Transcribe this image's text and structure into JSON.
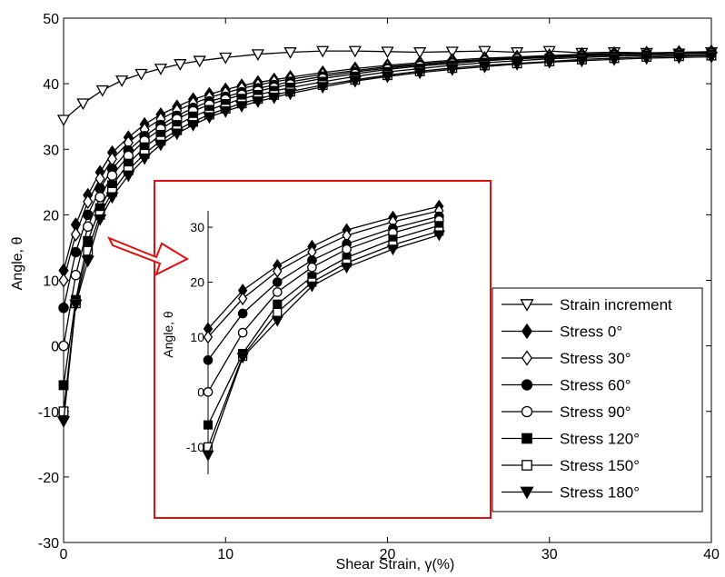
{
  "chart_data": [
    {
      "type": "line",
      "xlabel": "Shear Strain, γ(%)",
      "ylabel": "Angle, θ",
      "xlim": [
        0,
        40
      ],
      "ylim": [
        -30,
        50
      ],
      "xticks": [
        "0",
        "10",
        "20",
        "30",
        "40"
      ],
      "yticks": [
        "-30",
        "-20",
        "-10",
        "0",
        "10",
        "20",
        "30",
        "40",
        "50"
      ],
      "legend_position": "lower-right",
      "series": [
        {
          "name": "Strain increment",
          "marker": "triangle-down-open",
          "x": [
            0,
            1.2,
            2.4,
            3.6,
            4.8,
            6,
            7.2,
            8.4,
            10,
            12,
            14,
            16,
            18,
            20,
            22,
            24,
            26,
            28,
            30,
            32,
            34,
            36,
            38,
            40
          ],
          "y": [
            34.5,
            37,
            39,
            40.5,
            41.5,
            42.3,
            43,
            43.5,
            44,
            44.5,
            44.8,
            45,
            45,
            44.9,
            44.8,
            44.9,
            45,
            44.8,
            45,
            44.7,
            44.8,
            44.7,
            44.6,
            44.8
          ]
        },
        {
          "name": "Stress 0°",
          "marker": "diamond-filled",
          "x": [
            0,
            0.75,
            1.5,
            2.25,
            3,
            4,
            5,
            6,
            7,
            8,
            9,
            10,
            11,
            12,
            13,
            14,
            16,
            18,
            20,
            22,
            24,
            26,
            28,
            30,
            32,
            34,
            36,
            38,
            40
          ],
          "y": [
            11.5,
            18.5,
            23,
            26.5,
            29.5,
            31.8,
            33.8,
            35.3,
            36.5,
            37.6,
            38.4,
            39.1,
            39.7,
            40.2,
            40.6,
            41,
            41.7,
            42.3,
            42.8,
            43.2,
            43.6,
            43.9,
            44.1,
            44.3,
            44.5,
            44.6,
            44.7,
            44.8,
            44.9
          ]
        },
        {
          "name": "Stress 30°",
          "marker": "diamond-open",
          "x": [
            0,
            0.75,
            1.5,
            2.25,
            3,
            4,
            5,
            6,
            7,
            8,
            9,
            10,
            11,
            12,
            13,
            14,
            16,
            18,
            20,
            22,
            24,
            26,
            28,
            30,
            32,
            34,
            36,
            38,
            40
          ],
          "y": [
            10,
            17,
            22,
            25.5,
            28.5,
            31,
            33,
            34.6,
            35.9,
            37,
            37.9,
            38.6,
            39.3,
            39.8,
            40.3,
            40.7,
            41.4,
            42,
            42.6,
            43,
            43.4,
            43.7,
            44,
            44.2,
            44.4,
            44.5,
            44.6,
            44.7,
            44.8
          ]
        },
        {
          "name": "Stress 60°",
          "marker": "circle-filled",
          "x": [
            0,
            0.75,
            1.5,
            2.25,
            3,
            4,
            5,
            6,
            7,
            8,
            9,
            10,
            11,
            12,
            13,
            14,
            16,
            18,
            20,
            22,
            24,
            26,
            28,
            30,
            32,
            34,
            36,
            38,
            40
          ],
          "y": [
            5.8,
            14.3,
            20,
            24,
            27,
            29.8,
            32,
            33.7,
            35.1,
            36.3,
            37.3,
            38,
            38.7,
            39.3,
            39.8,
            40.3,
            41.1,
            41.8,
            42.4,
            42.9,
            43.3,
            43.6,
            43.9,
            44.1,
            44.3,
            44.5,
            44.6,
            44.7,
            44.8
          ]
        },
        {
          "name": "Stress 90°",
          "marker": "circle-open",
          "x": [
            0,
            0.75,
            1.5,
            2.25,
            3,
            4,
            5,
            6,
            7,
            8,
            9,
            10,
            11,
            12,
            13,
            14,
            16,
            18,
            20,
            22,
            24,
            26,
            28,
            30,
            32,
            34,
            36,
            38,
            40
          ],
          "y": [
            0,
            10.8,
            18.2,
            22.7,
            26,
            29,
            31.3,
            33.1,
            34.6,
            35.8,
            36.8,
            37.6,
            38.3,
            38.9,
            39.4,
            39.9,
            40.8,
            41.5,
            42.2,
            42.7,
            43.1,
            43.5,
            43.8,
            44,
            44.2,
            44.4,
            44.5,
            44.6,
            44.7
          ]
        },
        {
          "name": "Stress 120°",
          "marker": "square-filled",
          "x": [
            0,
            0.75,
            1.5,
            2.25,
            3,
            4,
            5,
            6,
            7,
            8,
            9,
            10,
            11,
            12,
            13,
            14,
            16,
            18,
            20,
            22,
            24,
            26,
            28,
            30,
            32,
            34,
            36,
            38,
            40
          ],
          "y": [
            -6,
            7,
            16,
            21,
            24.5,
            27.8,
            30.3,
            32.2,
            33.7,
            35,
            36,
            36.9,
            37.7,
            38.3,
            38.9,
            39.4,
            40.3,
            41.1,
            41.8,
            42.3,
            42.8,
            43.2,
            43.5,
            43.8,
            44,
            44.2,
            44.3,
            44.4,
            44.5
          ]
        },
        {
          "name": "Stress 150°",
          "marker": "square-open",
          "x": [
            0,
            0.75,
            1.5,
            2.25,
            3,
            4,
            5,
            6,
            7,
            8,
            9,
            10,
            11,
            12,
            13,
            14,
            16,
            18,
            20,
            22,
            24,
            26,
            28,
            30,
            32,
            34,
            36,
            38,
            40
          ],
          "y": [
            -10,
            6.5,
            14.5,
            20,
            23.5,
            26.8,
            29.3,
            31.3,
            32.9,
            34.2,
            35.3,
            36.2,
            37,
            37.7,
            38.3,
            38.8,
            39.8,
            40.6,
            41.3,
            41.9,
            42.4,
            42.8,
            43.1,
            43.4,
            43.7,
            43.9,
            44.1,
            44.2,
            44.3
          ]
        },
        {
          "name": "Stress 180°",
          "marker": "triangle-down-filled",
          "x": [
            0,
            0.75,
            1.5,
            2.25,
            3,
            4,
            5,
            6,
            7,
            8,
            9,
            10,
            11,
            12,
            13,
            14,
            16,
            18,
            20,
            22,
            24,
            26,
            28,
            30,
            32,
            34,
            36,
            38,
            40
          ],
          "y": [
            -11.5,
            6.3,
            13,
            19.3,
            22.7,
            26,
            28.6,
            30.7,
            32.4,
            33.7,
            34.9,
            35.8,
            36.6,
            37.3,
            37.9,
            38.5,
            39.5,
            40.4,
            41.1,
            41.7,
            42.2,
            42.6,
            43,
            43.3,
            43.5,
            43.7,
            43.9,
            44,
            44.1
          ]
        }
      ]
    },
    {
      "type": "line",
      "role": "inset",
      "ylabel": "Angle, θ",
      "yticks": [
        "-10",
        "0",
        "10",
        "20",
        "30"
      ],
      "ylim": [
        -15,
        33
      ],
      "xlim": [
        0,
        5.8
      ],
      "series_x": [
        0,
        0.75,
        1.5,
        2.25,
        3,
        4,
        5
      ],
      "series": [
        {
          "name": "Stress 0°",
          "y": [
            11.5,
            18.5,
            23,
            26.5,
            29.5,
            31.8,
            33.8
          ]
        },
        {
          "name": "Stress 30°",
          "y": [
            10,
            17,
            22,
            25.5,
            28.5,
            31,
            33
          ]
        },
        {
          "name": "Stress 60°",
          "y": [
            5.8,
            14.3,
            20,
            24,
            27,
            29.8,
            32
          ]
        },
        {
          "name": "Stress 90°",
          "y": [
            0,
            10.8,
            18.2,
            22.7,
            26,
            29,
            31.3
          ]
        },
        {
          "name": "Stress 120°",
          "y": [
            -6,
            7,
            16,
            21,
            24.5,
            27.8,
            30.3
          ]
        },
        {
          "name": "Stress 150°",
          "y": [
            -10,
            6.5,
            14.5,
            20,
            23.5,
            26.8,
            29.3
          ]
        },
        {
          "name": "Stress 180°",
          "y": [
            -11.5,
            6.3,
            13,
            19.3,
            22.7,
            26,
            28.6
          ]
        }
      ]
    }
  ],
  "colors": {
    "axis": "#000000",
    "line": "#000000",
    "inset_frame": "#e01010"
  }
}
